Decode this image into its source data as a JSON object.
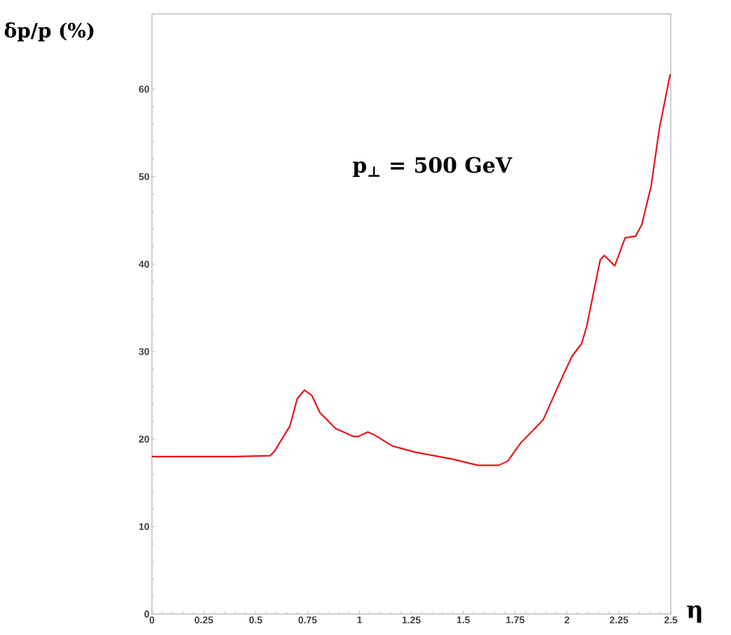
{
  "chart_data": {
    "type": "line",
    "xlabel": "η",
    "ylabel": "δp/p (%)",
    "annotations": [
      "p$_{⊥}$ = 500 GeV"
    ],
    "x": [
      0,
      0.2,
      0.4,
      0.57,
      0.59,
      0.665,
      0.7,
      0.735,
      0.77,
      0.81,
      0.885,
      0.97,
      0.995,
      1.04,
      1.07,
      1.16,
      1.27,
      1.45,
      1.57,
      1.67,
      1.715,
      1.775,
      1.885,
      1.985,
      2.025,
      2.07,
      2.095,
      2.16,
      2.18,
      2.23,
      2.28,
      2.33,
      2.36,
      2.405,
      2.445,
      2.497
    ],
    "series": [
      {
        "color": "#e8141a",
        "values": [
          18,
          18,
          18,
          18.1,
          18.6,
          21.5,
          24.6,
          25.6,
          25.0,
          23.0,
          21.2,
          20.3,
          20.3,
          20.8,
          20.5,
          19.2,
          18.5,
          17.7,
          17.0,
          17.0,
          17.5,
          19.5,
          22.2,
          27.5,
          29.5,
          30.9,
          32.9,
          40.5,
          41.0,
          39.8,
          43.0,
          43.2,
          44.5,
          48.9,
          55.5,
          61.7
        ]
      }
    ],
    "xlim": [
      0,
      2.5
    ],
    "ylim": [
      0,
      68.6
    ],
    "xticks": [
      0,
      0.25,
      0.5,
      0.75,
      1,
      1.25,
      1.5,
      1.75,
      2,
      2.25,
      2.5
    ],
    "yticks": [
      0,
      10,
      20,
      30,
      40,
      50,
      60
    ],
    "grid": false,
    "marker": "none",
    "line_style": "solid"
  }
}
